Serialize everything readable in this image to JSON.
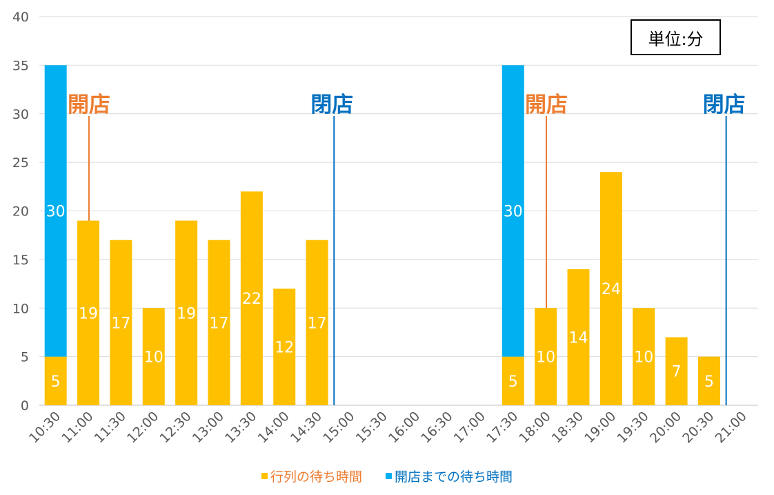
{
  "unit_label": "単位:分",
  "chart_data": {
    "type": "bar",
    "stacked": true,
    "categories": [
      "10:30",
      "11:00",
      "11:30",
      "12:00",
      "12:30",
      "13:00",
      "13:30",
      "14:00",
      "14:30",
      "15:00",
      "15:30",
      "16:00",
      "16:30",
      "17:00",
      "17:30",
      "18:00",
      "18:30",
      "19:00",
      "19:30",
      "20:00",
      "20:30",
      "21:00"
    ],
    "series": [
      {
        "name": "行列の待ち時間",
        "color": "#FFC000",
        "values": [
          5,
          19,
          17,
          10,
          19,
          17,
          22,
          12,
          17,
          0,
          0,
          0,
          0,
          0,
          5,
          10,
          14,
          24,
          10,
          7,
          5,
          0
        ]
      },
      {
        "name": "開店までの待ち時間",
        "color": "#00B0F0",
        "values": [
          30,
          0,
          0,
          0,
          0,
          0,
          0,
          0,
          0,
          0,
          0,
          0,
          0,
          0,
          30,
          0,
          0,
          0,
          0,
          0,
          0,
          0
        ]
      }
    ],
    "ylim": [
      0,
      40
    ],
    "yticks": [
      0,
      5,
      10,
      15,
      20,
      25,
      30,
      35,
      40
    ],
    "grid": true,
    "legend": "bottom",
    "annotations": [
      {
        "text": "開店",
        "category": "10:30",
        "color": "#ED7D31"
      },
      {
        "text": "閉店",
        "category": "15:00",
        "color": "#0070C0"
      },
      {
        "text": "開店",
        "category": "17:30",
        "color": "#ED7D31"
      },
      {
        "text": "閉店",
        "category": "21:00",
        "color": "#0070C0"
      }
    ]
  }
}
